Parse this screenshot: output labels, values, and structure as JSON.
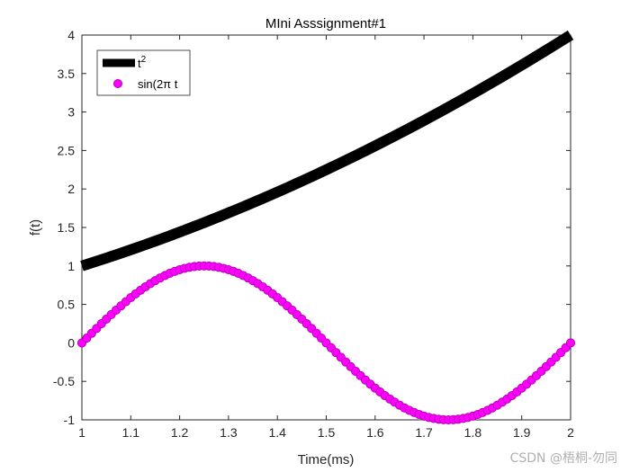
{
  "chart_data": {
    "type": "line",
    "title": "MIni Asssignment#1",
    "xlabel": "Time(ms)",
    "ylabel": "f(t)",
    "xlim": [
      1,
      2
    ],
    "ylim": [
      -1,
      4
    ],
    "xticks": [
      "1",
      "1.1",
      "1.2",
      "1.3",
      "1.4",
      "1.5",
      "1.6",
      "1.7",
      "1.8",
      "1.9",
      "2"
    ],
    "yticks": [
      "-1",
      "-0.5",
      "0",
      "0.5",
      "1",
      "1.5",
      "2",
      "2.5",
      "3",
      "3.5",
      "4"
    ],
    "grid": false,
    "legend_position": "top-left",
    "series": [
      {
        "name": "t",
        "name_superscript": "2",
        "color": "#000000",
        "style": "thick-line",
        "x": [
          1.0,
          1.1,
          1.2,
          1.3,
          1.4,
          1.5,
          1.6,
          1.7,
          1.8,
          1.9,
          2.0
        ],
        "y": [
          1.0,
          1.21,
          1.44,
          1.69,
          1.96,
          2.25,
          2.56,
          2.89,
          3.24,
          3.61,
          4.0
        ]
      },
      {
        "name": "sin(2π t",
        "color": "#ff00ff",
        "marker_edge": "#b000b0",
        "style": "line-with-circles",
        "x": [
          1.0,
          1.05,
          1.1,
          1.15,
          1.2,
          1.25,
          1.3,
          1.35,
          1.4,
          1.45,
          1.5,
          1.55,
          1.6,
          1.65,
          1.7,
          1.75,
          1.8,
          1.85,
          1.9,
          1.95,
          2.0
        ],
        "y": [
          0.0,
          0.309,
          0.588,
          0.809,
          0.951,
          1.0,
          0.951,
          0.809,
          0.588,
          0.309,
          0.0,
          -0.309,
          -0.588,
          -0.809,
          -0.951,
          -1.0,
          -0.951,
          -0.809,
          -0.588,
          -0.309,
          0.0
        ]
      }
    ]
  },
  "watermark": "CSDN @梧桐-勿同"
}
